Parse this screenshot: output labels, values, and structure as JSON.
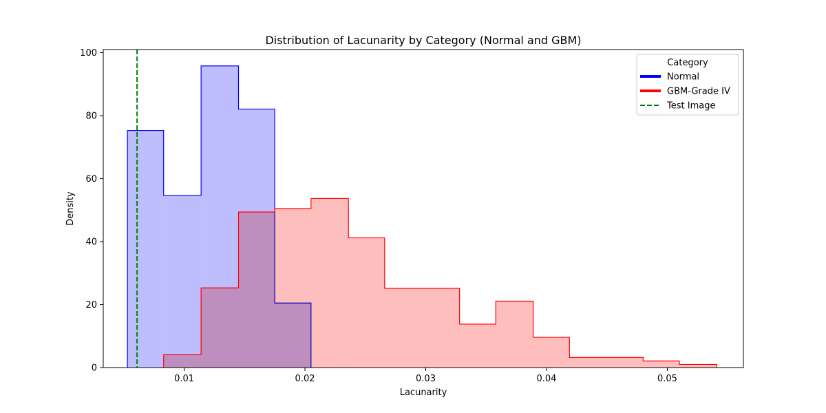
{
  "chart_data": {
    "type": "histogram",
    "title": "Distribution of Lacunarity by Category (Normal and GBM)",
    "xlabel": "Lacunarity",
    "ylabel": "Density",
    "xlim": [
      0.0033,
      0.0563
    ],
    "ylim": [
      0,
      101
    ],
    "x_ticks": [
      0.01,
      0.02,
      0.03,
      0.04,
      0.05
    ],
    "x_tick_labels": [
      "0.01",
      "0.02",
      "0.03",
      "0.04",
      "0.05"
    ],
    "y_ticks": [
      0,
      20,
      40,
      60,
      80,
      100
    ],
    "y_tick_labels": [
      "0",
      "20",
      "40",
      "60",
      "80",
      "100"
    ],
    "grid": false,
    "legend": {
      "title": "Category",
      "position": "top-right",
      "entries": [
        {
          "label": "Normal",
          "color": "#0000ff",
          "style": "solid"
        },
        {
          "label": "GBM-Grade IV",
          "color": "#ff0000",
          "style": "solid"
        },
        {
          "label": "Test Image",
          "color": "#008000",
          "style": "dashed"
        }
      ]
    },
    "series": [
      {
        "name": "Normal",
        "edge_color": "#0000ff",
        "fill_color": "#bebeff",
        "bin_edges": [
          0.0053,
          0.0083,
          0.0114,
          0.0145,
          0.0175,
          0.0205
        ],
        "values": [
          75.3,
          54.7,
          95.8,
          82.1,
          20.5
        ]
      },
      {
        "name": "GBM-Grade IV",
        "edge_color": "#ff0000",
        "fill_color": "#ffbebe",
        "bin_edges": [
          0.0083,
          0.0114,
          0.0145,
          0.0175,
          0.0205,
          0.0236,
          0.0266,
          0.0297,
          0.0328,
          0.0358,
          0.0389,
          0.0419,
          0.048,
          0.051,
          0.0541
        ],
        "values": [
          4.1,
          25.3,
          49.4,
          50.5,
          53.7,
          41.2,
          25.2,
          25.2,
          13.8,
          21.1,
          9.6,
          3.2,
          2.1,
          1.0
        ]
      }
    ],
    "reference_line": {
      "name": "Test Image",
      "x": 0.0061,
      "color": "#008000",
      "style": "dashed"
    }
  }
}
